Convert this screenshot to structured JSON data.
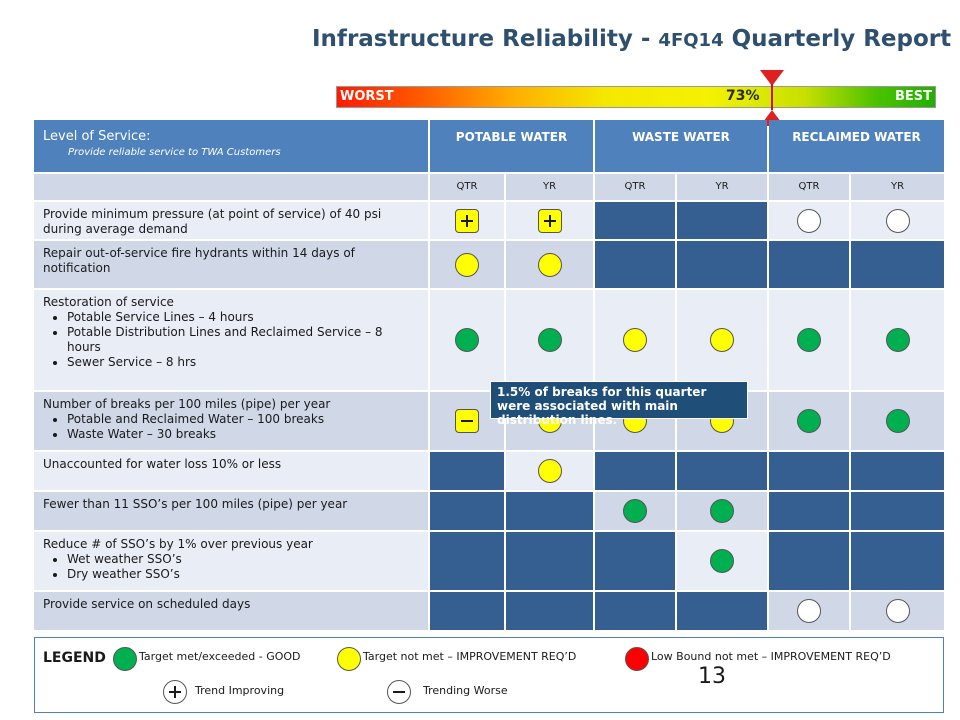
{
  "title": {
    "main": "Infrastructure Reliability - ",
    "period": "4FQ14",
    "rest": " Quarterly Report"
  },
  "scale": {
    "worst": "WORST",
    "best": "BEST",
    "percent": "73%",
    "value": 0.73
  },
  "header": {
    "level_title": "Level of Service:",
    "level_sub": "Provide reliable service to TWA Customers",
    "columns": [
      "POTABLE WATER",
      "WASTE WATER",
      "RECLAIMED WATER"
    ],
    "sub": [
      "QTR",
      "YR",
      "QTR",
      "YR",
      "QTR",
      "YR"
    ]
  },
  "rows": [
    {
      "text": "Provide minimum pressure (at point of service) of 40 psi during average demand",
      "bullets": [],
      "cells": [
        "yellow-plus",
        "yellow-plus",
        "navy",
        "navy",
        "white",
        "white"
      ]
    },
    {
      "text": "Repair out-of-service fire hydrants within 14 days of notification",
      "bullets": [],
      "cells": [
        "yellow",
        "yellow",
        "navy",
        "navy",
        "navy",
        "navy"
      ]
    },
    {
      "text": "Restoration of service",
      "bullets": [
        "Potable Service Lines – 4 hours",
        "Potable Distribution Lines and Reclaimed Service – 8 hours",
        "Sewer Service – 8 hrs"
      ],
      "cells": [
        "green",
        "green",
        "yellow",
        "yellow",
        "green",
        "green"
      ]
    },
    {
      "text": "Number of breaks per 100 miles (pipe) per year",
      "bullets": [
        "Potable and Reclaimed Water – 100 breaks",
        "Waste Water – 30 breaks"
      ],
      "cells": [
        "yellow-minus",
        "yellow",
        "yellow",
        "yellow",
        "green",
        "green"
      ]
    },
    {
      "text": "Unaccounted for water loss 10% or less",
      "bullets": [],
      "cells": [
        "navy",
        "yellow",
        "navy",
        "navy",
        "navy",
        "navy"
      ]
    },
    {
      "text": "Fewer than 11 SSO’s per 100 miles (pipe) per year",
      "bullets": [],
      "cells": [
        "navy",
        "navy",
        "green",
        "green",
        "navy",
        "navy"
      ]
    },
    {
      "text": "Reduce # of SSO’s by 1% over previous year",
      "bullets": [
        "Wet weather SSO’s",
        "Dry weather SSO’s"
      ],
      "cells": [
        "navy",
        "navy",
        "navy",
        "green",
        "navy",
        "navy"
      ]
    },
    {
      "text": "Provide service on scheduled days",
      "bullets": [],
      "cells": [
        "navy",
        "navy",
        "navy",
        "navy",
        "white",
        "white"
      ]
    }
  ],
  "callout": "1.5% of breaks for this quarter were associated with main distribution lines.",
  "legend": {
    "title": "LEGEND",
    "good": "Target met/exceeded - GOOD",
    "notmet": "Target not met – IMPROVEMENT REQ’D",
    "lowbound": "Low Bound not met – IMPROVEMENT REQ’D",
    "improving": "Trend Improving",
    "worse": "Trending Worse"
  },
  "page_number": "13",
  "colors": {
    "header": "#4f81bd",
    "navy": "#365f91",
    "green": "#00b050",
    "yellow": "#ffff00",
    "red": "#ff0000"
  }
}
